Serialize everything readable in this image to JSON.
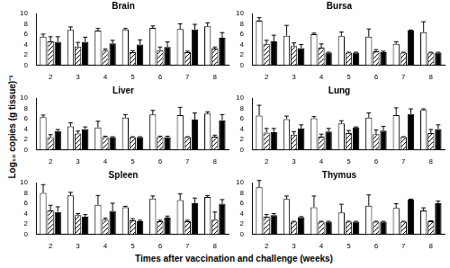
{
  "xlabel": "Times after vaccination and challenge (weeks)",
  "ylabel": "Log₁₀ copies (g tissue)⁻¹",
  "chart_data": [
    {
      "type": "bar",
      "title": "Brain",
      "categories": [
        "2",
        "3",
        "4",
        "5",
        "6",
        "7",
        "8"
      ],
      "ylim": [
        0,
        10
      ],
      "yticks": [
        0,
        2,
        4,
        6,
        8,
        10
      ],
      "grid": false,
      "series": [
        {
          "color": "#ffffff",
          "values": [
            5.5,
            6.8,
            6.7,
            6.9,
            7.2,
            7.0,
            7.5
          ],
          "errors": [
            0.5,
            0.6,
            0.4,
            0.2,
            0.4,
            1.0,
            0.7
          ]
        },
        {
          "color": "#000000",
          "marker": "hatched",
          "values": [
            4.6,
            3.6,
            2.8,
            2.5,
            2.9,
            2.5,
            3.2
          ],
          "errors": [
            0.9,
            0.8,
            0.3,
            0.3,
            0.6,
            0.2,
            0.3
          ]
        },
        {
          "color": "#000000",
          "values": [
            4.5,
            4.5,
            4.2,
            4.0,
            3.5,
            6.9,
            5.3
          ],
          "errors": [
            1.0,
            0.9,
            0.6,
            0.9,
            1.0,
            1.0,
            1.0
          ]
        }
      ]
    },
    {
      "type": "bar",
      "title": "Bursa",
      "categories": [
        "2",
        "3",
        "4",
        "5",
        "6",
        "7",
        "8"
      ],
      "ylim": [
        0,
        10
      ],
      "yticks": [
        0,
        2,
        4,
        6,
        8,
        10
      ],
      "grid": false,
      "series": [
        {
          "color": "#ffffff",
          "values": [
            8.6,
            5.7,
            6.0,
            5.6,
            5.5,
            4.1,
            6.4
          ],
          "errors": [
            0.6,
            2.0,
            0.2,
            0.8,
            1.5,
            0.4,
            2.0
          ]
        },
        {
          "color": "#000000",
          "marker": "hatched",
          "values": [
            4.1,
            3.7,
            3.4,
            2.4,
            2.7,
            2.4,
            2.4
          ],
          "errors": [
            0.7,
            0.6,
            0.7,
            0.1,
            0.3,
            0.1,
            0.1
          ]
        },
        {
          "color": "#000000",
          "values": [
            4.6,
            3.3,
            2.4,
            2.4,
            2.5,
            6.7,
            2.4
          ],
          "errors": [
            1.2,
            0.7,
            0.1,
            0.1,
            0.2,
            0.1,
            0.1
          ]
        }
      ]
    },
    {
      "type": "bar",
      "title": "Liver",
      "categories": [
        "2",
        "3",
        "4",
        "5",
        "6",
        "7",
        "8"
      ],
      "ylim": [
        0,
        10
      ],
      "yticks": [
        0,
        2,
        4,
        6,
        8,
        10
      ],
      "grid": false,
      "series": [
        {
          "color": "#ffffff",
          "values": [
            6.3,
            4.5,
            4.3,
            6.2,
            6.8,
            6.7,
            7.0
          ],
          "errors": [
            0.4,
            0.7,
            1.2,
            0.6,
            0.8,
            1.5,
            0.3
          ]
        },
        {
          "color": "#000000",
          "marker": "hatched",
          "values": [
            2.4,
            3.1,
            2.4,
            2.4,
            2.4,
            2.4,
            2.5
          ],
          "errors": [
            0.5,
            0.5,
            0.2,
            0.1,
            0.2,
            0.1,
            0.3
          ]
        },
        {
          "color": "#000000",
          "values": [
            3.6,
            4.0,
            2.4,
            2.4,
            2.4,
            5.8,
            5.7
          ],
          "errors": [
            0.3,
            0.4,
            0.1,
            0.1,
            0.2,
            1.3,
            1.1
          ]
        }
      ]
    },
    {
      "type": "bar",
      "title": "Lung",
      "categories": [
        "2",
        "3",
        "4",
        "5",
        "6",
        "7",
        "8"
      ],
      "ylim": [
        0,
        10
      ],
      "yticks": [
        0,
        2,
        4,
        6,
        8,
        10
      ],
      "grid": false,
      "series": [
        {
          "color": "#ffffff",
          "values": [
            6.6,
            5.9,
            6.1,
            5.1,
            6.2,
            6.7,
            7.7
          ],
          "errors": [
            2.0,
            0.6,
            0.3,
            0.5,
            0.9,
            1.4,
            0.2
          ]
        },
        {
          "color": "#000000",
          "marker": "hatched",
          "values": [
            3.3,
            2.9,
            2.5,
            3.2,
            3.0,
            2.4,
            3.2
          ],
          "errors": [
            0.8,
            0.6,
            0.5,
            0.5,
            0.8,
            0.1,
            0.7
          ]
        },
        {
          "color": "#000000",
          "values": [
            3.4,
            4.1,
            3.5,
            4.3,
            3.7,
            6.9,
            4.0
          ],
          "errors": [
            0.7,
            0.7,
            0.6,
            0.1,
            0.8,
            1.0,
            0.8
          ]
        }
      ]
    },
    {
      "type": "bar",
      "title": "Spleen",
      "categories": [
        "2",
        "3",
        "4",
        "5",
        "6",
        "7",
        "8"
      ],
      "ylim": [
        0,
        10
      ],
      "yticks": [
        0,
        2,
        4,
        6,
        8,
        10
      ],
      "grid": false,
      "series": [
        {
          "color": "#ffffff",
          "values": [
            8.0,
            7.5,
            5.7,
            5.2,
            6.9,
            6.6,
            7.2
          ],
          "errors": [
            1.6,
            0.6,
            1.8,
            0.2,
            0.5,
            1.2,
            0.3
          ]
        },
        {
          "color": "#000000",
          "marker": "hatched",
          "values": [
            4.6,
            3.7,
            2.8,
            2.7,
            2.5,
            2.5,
            2.8
          ],
          "errors": [
            1.0,
            0.3,
            0.3,
            0.3,
            0.2,
            0.2,
            1.5
          ]
        },
        {
          "color": "#000000",
          "values": [
            4.3,
            3.4,
            4.5,
            2.5,
            3.2,
            6.0,
            5.9
          ],
          "errors": [
            1.0,
            0.4,
            1.5,
            0.2,
            0.3,
            1.0,
            0.8
          ]
        }
      ]
    },
    {
      "type": "bar",
      "title": "Thymus",
      "categories": [
        "2",
        "3",
        "4",
        "5",
        "6",
        "7",
        "8"
      ],
      "ylim": [
        0,
        10
      ],
      "yticks": [
        0,
        2,
        4,
        6,
        8,
        10
      ],
      "grid": false,
      "series": [
        {
          "color": "#ffffff",
          "values": [
            9.1,
            6.8,
            5.2,
            4.2,
            5.5,
            5.1,
            4.6
          ],
          "errors": [
            1.3,
            0.6,
            2.2,
            1.6,
            2.1,
            0.8,
            0.5
          ]
        },
        {
          "color": "#000000",
          "marker": "hatched",
          "values": [
            3.4,
            2.4,
            2.4,
            2.4,
            2.4,
            2.4,
            2.5
          ],
          "errors": [
            0.4,
            0.1,
            0.1,
            0.1,
            0.1,
            0.1,
            0.1
          ]
        },
        {
          "color": "#000000",
          "values": [
            3.7,
            3.3,
            2.4,
            2.4,
            2.4,
            6.7,
            6.0
          ],
          "errors": [
            0.3,
            0.1,
            0.1,
            0.1,
            0.1,
            0.1,
            0.4
          ]
        }
      ]
    }
  ]
}
